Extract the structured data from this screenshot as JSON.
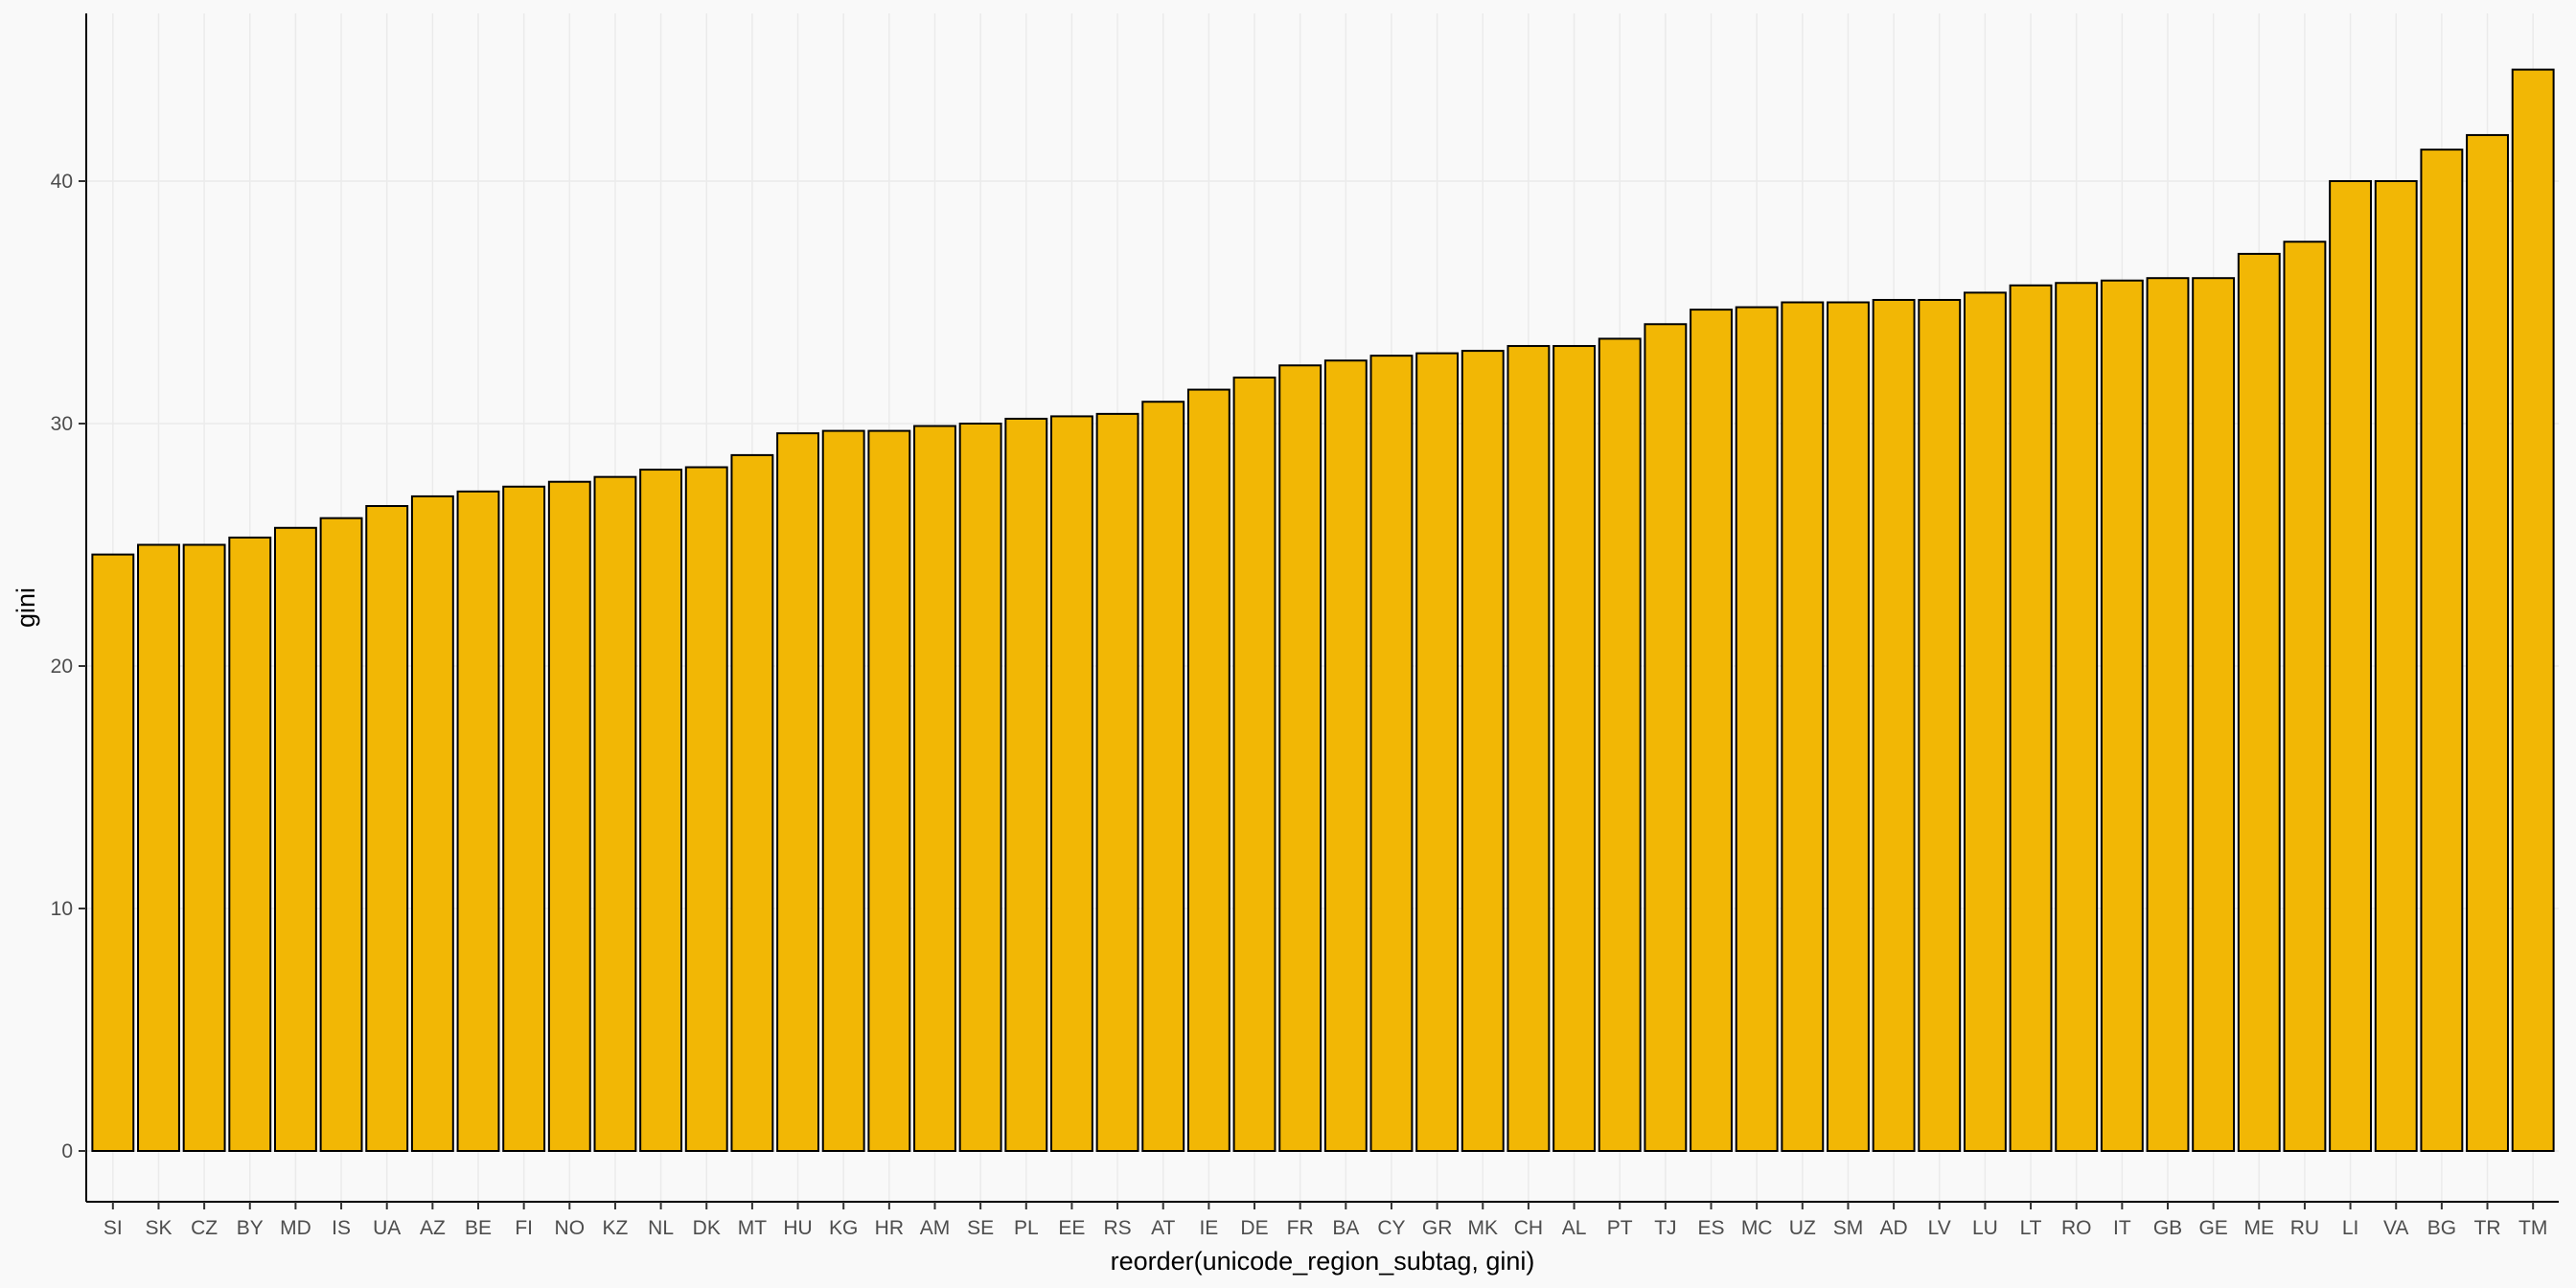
{
  "chart_data": {
    "type": "bar",
    "title": "",
    "xlabel": "reorder(unicode_region_subtag, gini)",
    "ylabel": "gini",
    "ylim": [
      0,
      46
    ],
    "y_ticks": [
      0,
      10,
      20,
      30,
      40
    ],
    "grid": true,
    "bar_color": "#f2b705",
    "bar_outline_color": "#000000",
    "categories": [
      "SI",
      "SK",
      "CZ",
      "BY",
      "MD",
      "IS",
      "UA",
      "AZ",
      "BE",
      "FI",
      "NO",
      "KZ",
      "NL",
      "DK",
      "MT",
      "HU",
      "KG",
      "HR",
      "AM",
      "SE",
      "PL",
      "EE",
      "RS",
      "AT",
      "IE",
      "DE",
      "FR",
      "BA",
      "CY",
      "GR",
      "MK",
      "CH",
      "AL",
      "PT",
      "TJ",
      "ES",
      "MC",
      "UZ",
      "SM",
      "AD",
      "LV",
      "LU",
      "LT",
      "RO",
      "IT",
      "GB",
      "GE",
      "ME",
      "RU",
      "LI",
      "VA",
      "BG",
      "TR",
      "TM"
    ],
    "values": [
      24.6,
      25.0,
      25.0,
      25.3,
      25.7,
      26.1,
      26.6,
      27.0,
      27.2,
      27.4,
      27.6,
      27.8,
      28.1,
      28.2,
      28.7,
      29.6,
      29.7,
      29.7,
      29.9,
      30.0,
      30.2,
      30.3,
      30.4,
      30.9,
      31.4,
      31.9,
      32.4,
      32.6,
      32.8,
      32.9,
      33.0,
      33.2,
      33.2,
      33.5,
      34.1,
      34.7,
      34.8,
      35.0,
      35.0,
      35.1,
      35.1,
      35.4,
      35.7,
      35.8,
      35.9,
      36.0,
      36.0,
      37.0,
      37.5,
      40.0,
      40.0,
      41.3,
      41.9,
      44.6
    ]
  }
}
